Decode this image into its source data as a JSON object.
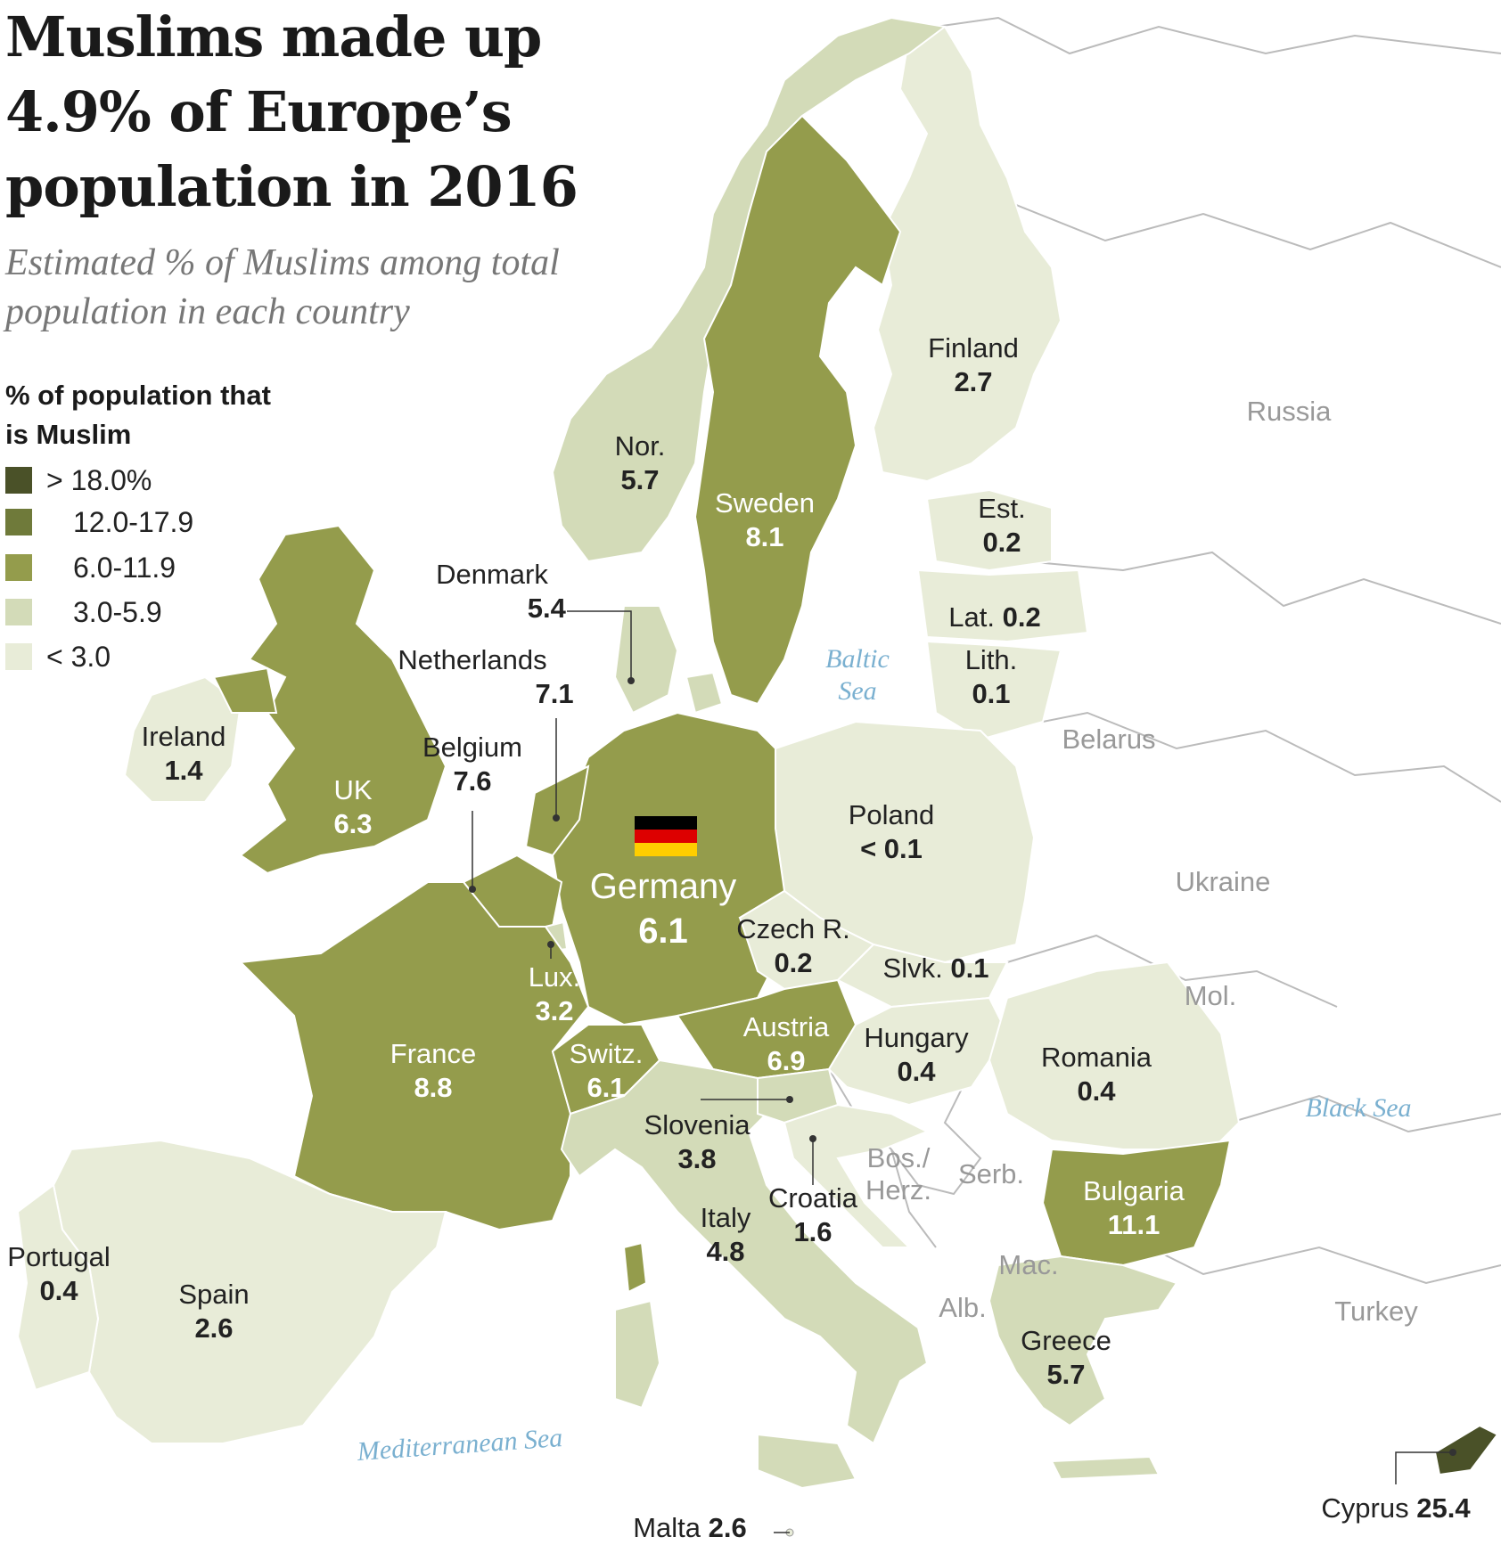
{
  "title": "Muslims made up 4.9% of Europe’s population in 2016",
  "subtitle": "Estimated % of Muslims among total population in each country",
  "legend": {
    "title": "% of population that is Muslim",
    "items": [
      {
        "label": "> 18.0%",
        "color": "#4a5128"
      },
      {
        "label": "12.0-17.9",
        "color": "#6f7a3a"
      },
      {
        "label": "6.0-11.9",
        "color": "#949c4c"
      },
      {
        "label": "3.0-5.9",
        "color": "#d3dbb8"
      },
      {
        "label": "< 3.0",
        "color": "#e8ecd8"
      }
    ]
  },
  "countries": {
    "finland": {
      "name": "Finland",
      "value": "2.7"
    },
    "norway": {
      "name": "Nor.",
      "value": "5.7"
    },
    "sweden": {
      "name": "Sweden",
      "value": "8.1"
    },
    "estonia": {
      "name": "Est.",
      "value": "0.2"
    },
    "latvia": {
      "name": "Lat.",
      "value": "0.2"
    },
    "lithuania": {
      "name": "Lith.",
      "value": "0.1"
    },
    "denmark": {
      "name": "Denmark",
      "value": "5.4"
    },
    "netherlands": {
      "name": "Netherlands",
      "value": "7.1"
    },
    "ireland": {
      "name": "Ireland",
      "value": "1.4"
    },
    "uk": {
      "name": "UK",
      "value": "6.3"
    },
    "belgium": {
      "name": "Belgium",
      "value": "7.6"
    },
    "germany": {
      "name": "Germany",
      "value": "6.1"
    },
    "poland": {
      "name": "Poland",
      "value": "< 0.1"
    },
    "czech": {
      "name": "Czech R.",
      "value": "0.2"
    },
    "slovakia": {
      "name": "Slvk.",
      "value": "0.1"
    },
    "luxembourg": {
      "name": "Lux.",
      "value": "3.2"
    },
    "austria": {
      "name": "Austria",
      "value": "6.9"
    },
    "hungary": {
      "name": "Hungary",
      "value": "0.4"
    },
    "romania": {
      "name": "Romania",
      "value": "0.4"
    },
    "france": {
      "name": "France",
      "value": "8.8"
    },
    "switzerland": {
      "name": "Switz.",
      "value": "6.1"
    },
    "slovenia": {
      "name": "Slovenia",
      "value": "3.8"
    },
    "croatia": {
      "name": "Croatia",
      "value": "1.6"
    },
    "italy": {
      "name": "Italy",
      "value": "4.8"
    },
    "bulgaria": {
      "name": "Bulgaria",
      "value": "11.1"
    },
    "portugal": {
      "name": "Portugal",
      "value": "0.4"
    },
    "spain": {
      "name": "Spain",
      "value": "2.6"
    },
    "greece": {
      "name": "Greece",
      "value": "5.7"
    },
    "cyprus": {
      "name": "Cyprus",
      "value": "25.4"
    },
    "malta": {
      "name": "Malta",
      "value": "2.6"
    }
  },
  "other_labels": {
    "russia": "Russia",
    "belarus": "Belarus",
    "ukraine": "Ukraine",
    "moldova": "Mol.",
    "turkey": "Turkey",
    "serbia": "Serb.",
    "bosnia": "Bos./ Herz.",
    "macedonia": "Mac.",
    "albania": "Alb."
  },
  "seas": {
    "baltic": "Baltic Sea",
    "black": "Black Sea",
    "mediterranean": "Mediterranean Sea"
  },
  "flag": {
    "country": "Germany",
    "colors": [
      "#000000",
      "#dd0000",
      "#ffce00"
    ]
  }
}
